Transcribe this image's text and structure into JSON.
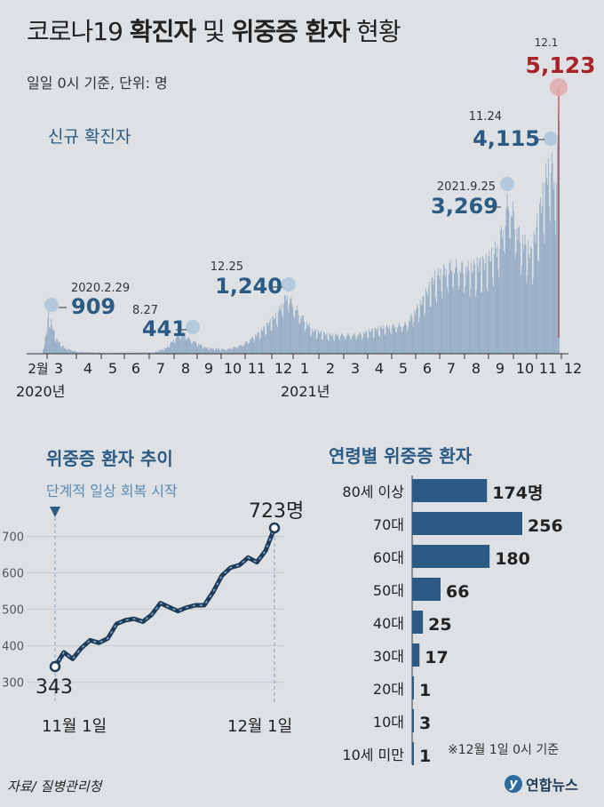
{
  "header": {
    "title_prefix": "코로나19 ",
    "title_bold1": "확진자",
    "title_mid": " 및 ",
    "title_bold2": "위중증 환자",
    "title_suffix": " 현황",
    "subtitle": "일일 0시 기준, 단위: 명"
  },
  "footer": {
    "source": "자료/ 질병관리청",
    "logo": "연합뉴스"
  },
  "colors": {
    "accent": "#2b5a84",
    "highlight": "#a8232a",
    "bar": "#8ea7c2",
    "line": "#1f3b57"
  },
  "chart_data": [
    {
      "type": "bar",
      "title": "신규 확진자",
      "month_labels": [
        "2월",
        "3",
        "4",
        "5",
        "6",
        "7",
        "8",
        "9",
        "10",
        "11",
        "12",
        "1",
        "2",
        "3",
        "4",
        "5",
        "6",
        "7",
        "8",
        "9",
        "10",
        "11",
        "12"
      ],
      "year_labels": [
        "2020년",
        "2021년"
      ],
      "annotations": [
        {
          "date": "2020.2.29",
          "value": "909"
        },
        {
          "date": "8.27",
          "value": "441"
        },
        {
          "date": "12.25",
          "value": "1,240"
        },
        {
          "date": "2021.9.25",
          "value": "3,269"
        },
        {
          "date": "11.24",
          "value": "4,115"
        },
        {
          "date": "12.1",
          "value": "5,123"
        }
      ],
      "ylim": [
        0,
        5123
      ]
    },
    {
      "type": "line",
      "title": "위중증 환자 추이",
      "event_label": "단계적 일상 회복 시작",
      "x_labels": [
        "11월 1일",
        "12월 1일"
      ],
      "y_ticks": [
        300,
        400,
        500,
        600,
        700
      ],
      "ylim": [
        280,
        730
      ],
      "values": [
        343,
        382,
        364,
        394,
        415,
        408,
        420,
        460,
        470,
        474,
        466,
        485,
        517,
        506,
        495,
        505,
        511,
        511,
        547,
        592,
        614,
        621,
        642,
        629,
        661,
        723
      ],
      "start_label": "343",
      "end_label": "723명"
    },
    {
      "type": "bar",
      "orientation": "horizontal",
      "title": "연령별 위중증 환자",
      "categories": [
        "80세 이상",
        "70대",
        "60대",
        "50대",
        "40대",
        "30대",
        "20대",
        "10대",
        "10세 미만"
      ],
      "values": [
        174,
        256,
        180,
        66,
        25,
        17,
        1,
        3,
        1
      ],
      "value_labels": [
        "174명",
        "256",
        "180",
        "66",
        "25",
        "17",
        "1",
        "3",
        "1"
      ],
      "note": "※12월 1일 0시 기준"
    }
  ]
}
